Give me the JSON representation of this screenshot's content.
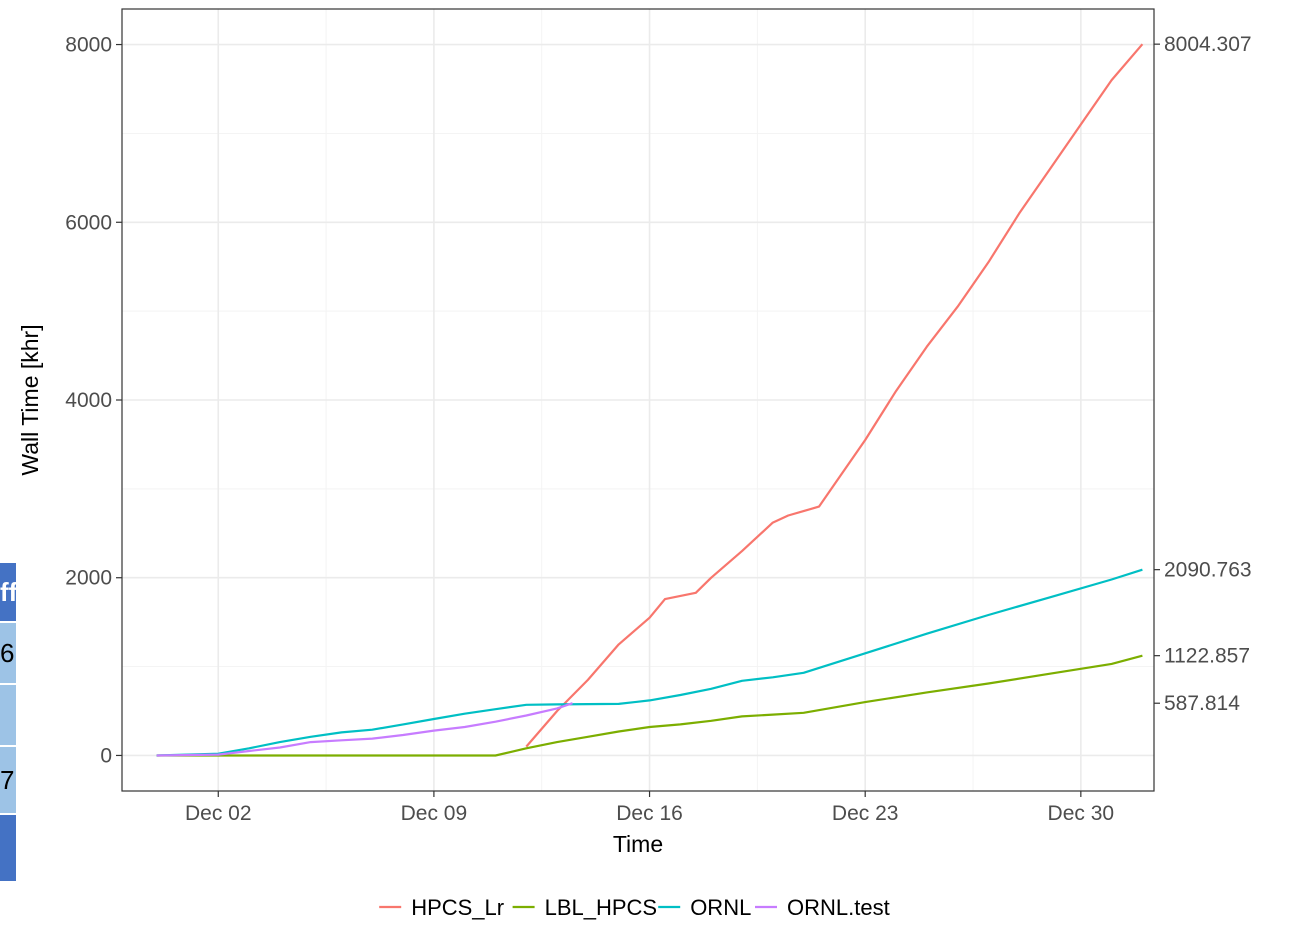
{
  "chart_data": {
    "type": "line",
    "xlabel": "Time",
    "ylabel": "Wall Time [khr]",
    "x_ticks": [
      "Dec 02",
      "Dec 09",
      "Dec 16",
      "Dec 23",
      "Dec 30"
    ],
    "x_tick_dates": [
      "2023-12-02",
      "2023-12-09",
      "2023-12-16",
      "2023-12-23",
      "2023-12-30"
    ],
    "xlim": [
      "2023-11-28T21:00",
      "2024-01-01T09:00"
    ],
    "y_ticks": [
      0,
      2000,
      4000,
      6000,
      8000
    ],
    "ylim": [
      -400,
      8400
    ],
    "secondary_y_ticks": [
      "8004.307",
      "2090.763",
      "1122.857",
      "587.814"
    ],
    "secondary_y_values": [
      8004.307,
      2090.763,
      1122.857,
      587.814
    ],
    "grid": true,
    "legend_position": "bottom",
    "series": [
      {
        "name": "HPCS_Lr",
        "color": "#F8766D",
        "points": [
          [
            "2023-12-12T00:00",
            100
          ],
          [
            "2023-12-13T00:00",
            500
          ],
          [
            "2023-12-14T00:00",
            850
          ],
          [
            "2023-12-15T00:00",
            1250
          ],
          [
            "2023-12-16T00:00",
            1550
          ],
          [
            "2023-12-16T12:00",
            1760
          ],
          [
            "2023-12-17T12:00",
            1830
          ],
          [
            "2023-12-18T00:00",
            2000
          ],
          [
            "2023-12-19T00:00",
            2300
          ],
          [
            "2023-12-20T00:00",
            2620
          ],
          [
            "2023-12-20T12:00",
            2700
          ],
          [
            "2023-12-21T00:00",
            2750
          ],
          [
            "2023-12-21T12:00",
            2800
          ],
          [
            "2023-12-22T00:00",
            3050
          ],
          [
            "2023-12-23T00:00",
            3550
          ],
          [
            "2023-12-24T00:00",
            4100
          ],
          [
            "2023-12-25T00:00",
            4600
          ],
          [
            "2023-12-26T00:00",
            5050
          ],
          [
            "2023-12-27T00:00",
            5550
          ],
          [
            "2023-12-28T00:00",
            6100
          ],
          [
            "2023-12-29T00:00",
            6600
          ],
          [
            "2023-12-30T00:00",
            7100
          ],
          [
            "2023-12-31T00:00",
            7600
          ],
          [
            "2024-01-01T00:00",
            8004.307
          ]
        ]
      },
      {
        "name": "LBL_HPCS",
        "color": "#7CAE00",
        "points": [
          [
            "2023-11-30T00:00",
            0
          ],
          [
            "2023-12-11T00:00",
            0
          ],
          [
            "2023-12-12T00:00",
            80
          ],
          [
            "2023-12-13T00:00",
            150
          ],
          [
            "2023-12-14T00:00",
            210
          ],
          [
            "2023-12-15T00:00",
            270
          ],
          [
            "2023-12-16T00:00",
            320
          ],
          [
            "2023-12-17T00:00",
            350
          ],
          [
            "2023-12-18T00:00",
            390
          ],
          [
            "2023-12-19T00:00",
            440
          ],
          [
            "2023-12-20T00:00",
            460
          ],
          [
            "2023-12-21T00:00",
            480
          ],
          [
            "2023-12-23T00:00",
            600
          ],
          [
            "2023-12-25T00:00",
            710
          ],
          [
            "2023-12-27T00:00",
            810
          ],
          [
            "2023-12-29T00:00",
            920
          ],
          [
            "2023-12-31T00:00",
            1030
          ],
          [
            "2024-01-01T00:00",
            1122.857
          ]
        ]
      },
      {
        "name": "ORNL",
        "color": "#00BFC4",
        "points": [
          [
            "2023-11-30T00:00",
            0
          ],
          [
            "2023-12-01T00:00",
            10
          ],
          [
            "2023-12-02T00:00",
            20
          ],
          [
            "2023-12-03T00:00",
            80
          ],
          [
            "2023-12-04T00:00",
            150
          ],
          [
            "2023-12-05T00:00",
            210
          ],
          [
            "2023-12-06T00:00",
            260
          ],
          [
            "2023-12-07T00:00",
            290
          ],
          [
            "2023-12-08T00:00",
            350
          ],
          [
            "2023-12-09T00:00",
            410
          ],
          [
            "2023-12-10T00:00",
            470
          ],
          [
            "2023-12-11T00:00",
            520
          ],
          [
            "2023-12-12T00:00",
            570
          ],
          [
            "2023-12-13T00:00",
            575
          ],
          [
            "2023-12-14T00:00",
            578
          ],
          [
            "2023-12-15T00:00",
            580
          ],
          [
            "2023-12-16T00:00",
            620
          ],
          [
            "2023-12-17T00:00",
            680
          ],
          [
            "2023-12-18T00:00",
            750
          ],
          [
            "2023-12-19T00:00",
            840
          ],
          [
            "2023-12-20T00:00",
            880
          ],
          [
            "2023-12-21T00:00",
            930
          ],
          [
            "2023-12-23T00:00",
            1150
          ],
          [
            "2023-12-25T00:00",
            1370
          ],
          [
            "2023-12-27T00:00",
            1580
          ],
          [
            "2023-12-29T00:00",
            1780
          ],
          [
            "2023-12-31T00:00",
            1980
          ],
          [
            "2024-01-01T00:00",
            2090.763
          ]
        ]
      },
      {
        "name": "ORNL.test",
        "color": "#C77CFF",
        "points": [
          [
            "2023-11-30T00:00",
            0
          ],
          [
            "2023-12-02T00:00",
            10
          ],
          [
            "2023-12-03T00:00",
            50
          ],
          [
            "2023-12-04T00:00",
            90
          ],
          [
            "2023-12-05T00:00",
            150
          ],
          [
            "2023-12-06T00:00",
            170
          ],
          [
            "2023-12-07T00:00",
            190
          ],
          [
            "2023-12-08T00:00",
            230
          ],
          [
            "2023-12-09T00:00",
            280
          ],
          [
            "2023-12-10T00:00",
            320
          ],
          [
            "2023-12-11T00:00",
            380
          ],
          [
            "2023-12-12T00:00",
            450
          ],
          [
            "2023-12-13T00:00",
            530
          ],
          [
            "2023-12-13T12:00",
            587.814
          ]
        ]
      }
    ]
  },
  "side_table": {
    "header_color": "#4472C4",
    "row_color": "#9DC3E6",
    "cells": [
      "ff",
      "6",
      "",
      "7",
      ""
    ]
  }
}
